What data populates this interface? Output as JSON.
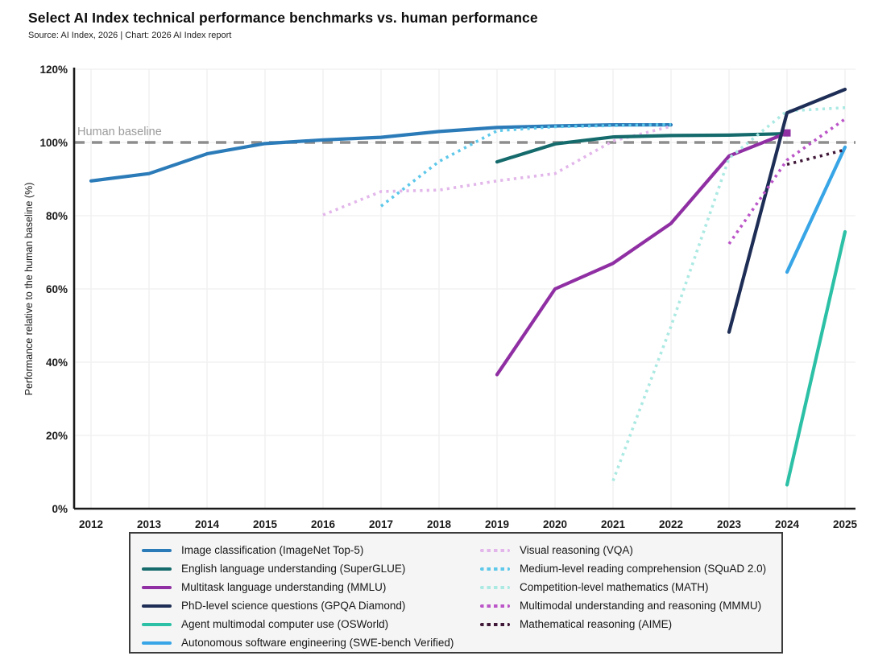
{
  "header": {
    "title": "Select AI Index technical performance benchmarks vs. human performance",
    "source": "Source: AI Index, 2026 | Chart: 2026 AI Index report"
  },
  "chart_data": {
    "type": "line",
    "title": "Select AI Index technical performance benchmarks vs. human performance",
    "xlabel": "",
    "ylabel": "Performance relative to the human baseline (%)",
    "ylim": [
      0,
      120
    ],
    "yticks": [
      0,
      20,
      40,
      60,
      80,
      100,
      120
    ],
    "ytick_suffix": "%",
    "x_years": [
      2012,
      2013,
      2014,
      2015,
      2016,
      2017,
      2018,
      2019,
      2020,
      2021,
      2022,
      2023,
      2024,
      2025
    ],
    "grid": true,
    "legend_position": "bottom",
    "legend_columns": [
      6,
      5
    ],
    "baseline": {
      "value": 100,
      "label": "Human baseline",
      "color": "#8d8d8d",
      "label_color": "#9b9b9b"
    },
    "series": [
      {
        "id": "imagenet",
        "name": "Image classification (ImageNet Top-5)",
        "style": "solid",
        "color": "#2b7bb9",
        "points": [
          [
            2012,
            89.5
          ],
          [
            2013,
            91.5
          ],
          [
            2014,
            96.9
          ],
          [
            2015,
            99.7
          ],
          [
            2016,
            100.7
          ],
          [
            2017,
            101.4
          ],
          [
            2018,
            103.0
          ],
          [
            2019,
            104.1
          ],
          [
            2020,
            104.5
          ],
          [
            2021,
            104.8
          ],
          [
            2022,
            104.8
          ]
        ]
      },
      {
        "id": "superglue",
        "name": "English language understanding (SuperGLUE)",
        "style": "solid",
        "color": "#156a6c",
        "points": [
          [
            2019,
            94.7
          ],
          [
            2020,
            99.6
          ],
          [
            2021,
            101.5
          ],
          [
            2022,
            101.9
          ],
          [
            2023,
            102.0
          ],
          [
            2024,
            102.4
          ]
        ]
      },
      {
        "id": "mmlu",
        "name": "Multitask language understanding (MMLU)",
        "style": "solid",
        "color": "#8f2fa3",
        "end_marker": true,
        "points": [
          [
            2019,
            36.6
          ],
          [
            2020,
            60.0
          ],
          [
            2021,
            67.0
          ],
          [
            2022,
            77.9
          ],
          [
            2023,
            96.3
          ],
          [
            2024,
            102.6
          ]
        ]
      },
      {
        "id": "gpqa",
        "name": "PhD-level science questions (GPQA Diamond)",
        "style": "solid",
        "color": "#1d2d55",
        "points": [
          [
            2023,
            48.2
          ],
          [
            2024,
            108.1
          ],
          [
            2025,
            114.5
          ]
        ]
      },
      {
        "id": "osworld",
        "name": "Agent multimodal computer use (OSWorld)",
        "style": "solid",
        "color": "#2cc0a6",
        "points": [
          [
            2024,
            6.5
          ],
          [
            2025,
            75.6
          ]
        ]
      },
      {
        "id": "swebench",
        "name": "Autonomous software engineering (SWE-bench Verified)",
        "style": "solid",
        "color": "#38a5e6",
        "points": [
          [
            2024,
            64.6
          ],
          [
            2025,
            98.7
          ]
        ]
      },
      {
        "id": "vqa",
        "name": "Visual reasoning (VQA)",
        "style": "dotted",
        "color": "#e2b6ea",
        "points": [
          [
            2016,
            80.2
          ],
          [
            2017,
            86.6
          ],
          [
            2018,
            87.0
          ],
          [
            2019,
            89.5
          ],
          [
            2020,
            91.5
          ],
          [
            2021,
            100.4
          ],
          [
            2022,
            104.4
          ]
        ]
      },
      {
        "id": "squad",
        "name": "Medium-level reading comprehension (SQuAD 2.0)",
        "style": "dotted",
        "color": "#5ec8ea",
        "points": [
          [
            2017,
            82.6
          ],
          [
            2018,
            94.8
          ],
          [
            2019,
            103.2
          ],
          [
            2020,
            104.3
          ],
          [
            2021,
            104.6
          ],
          [
            2022,
            104.9
          ]
        ]
      },
      {
        "id": "math",
        "name": "Competition-level mathematics (MATH)",
        "style": "dotted",
        "color": "#abe9e3",
        "points": [
          [
            2021,
            7.6
          ],
          [
            2022,
            49.8
          ],
          [
            2023,
            95.7
          ],
          [
            2024,
            108.6
          ],
          [
            2025,
            109.5
          ]
        ]
      },
      {
        "id": "mmmu",
        "name": "Multimodal understanding and reasoning (MMMU)",
        "style": "dotted",
        "color": "#bb55c8",
        "points": [
          [
            2023,
            72.3
          ],
          [
            2024,
            95.2
          ],
          [
            2025,
            106.4
          ]
        ]
      },
      {
        "id": "aime",
        "name": "Mathematical reasoning (AIME)",
        "style": "dotted",
        "color": "#401838",
        "points": [
          [
            2024,
            94.0
          ],
          [
            2025,
            98.0
          ]
        ]
      }
    ]
  }
}
